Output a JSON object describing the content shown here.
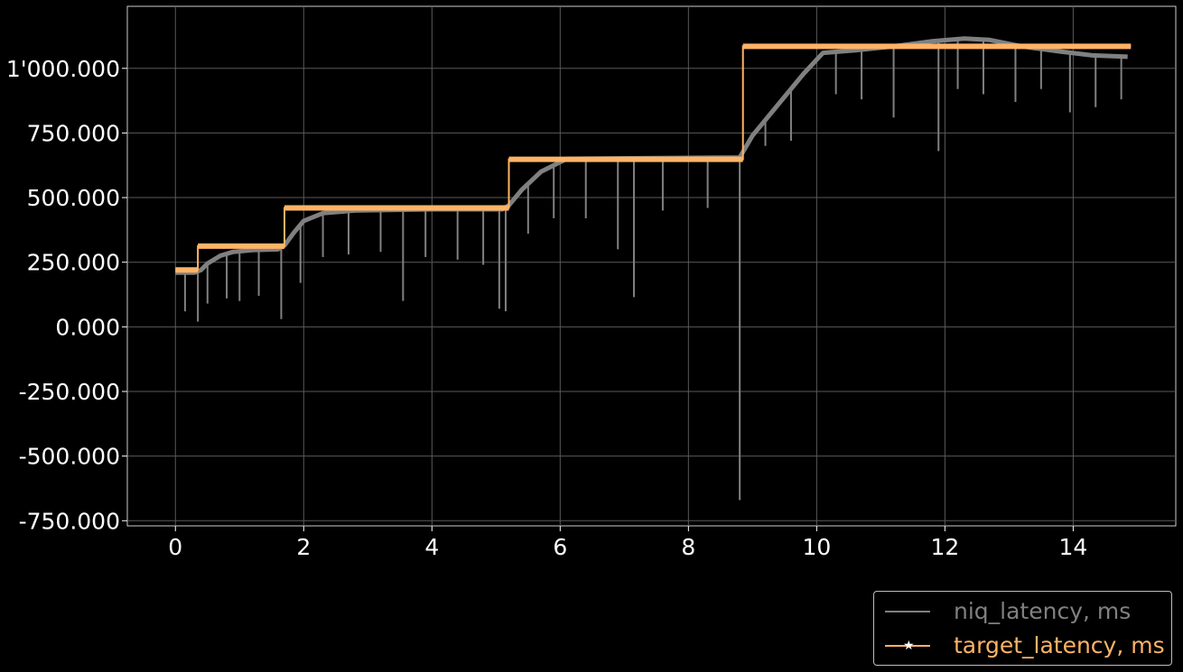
{
  "chart_data": {
    "type": "line",
    "title": "",
    "xlabel": "",
    "ylabel": "",
    "xlim": [
      -0.75,
      15.6
    ],
    "ylim": [
      -770,
      1240
    ],
    "x_ticks": [
      0,
      2,
      4,
      6,
      8,
      10,
      12,
      14
    ],
    "x_tick_labels": [
      "0",
      "2",
      "4",
      "6",
      "8",
      "10",
      "12",
      "14"
    ],
    "y_ticks": [
      -750,
      -500,
      -250,
      0,
      250,
      500,
      750,
      1000
    ],
    "y_tick_labels": [
      "-750.000",
      "-500.000",
      "-250.000",
      "0.000",
      "250.000",
      "500.000",
      "750.000",
      "1'000.000"
    ],
    "grid": true,
    "legend_position": "bottom-right, outside plot",
    "series": [
      {
        "name": "niq_latency, ms",
        "color": "#808080",
        "marker": "none",
        "x": [
          0,
          0.3,
          0.4,
          0.5,
          0.7,
          0.9,
          1.2,
          1.6,
          1.7,
          1.85,
          2.0,
          2.3,
          2.8,
          4.0,
          5.1,
          5.2,
          5.4,
          5.7,
          6.1,
          8.8,
          9.0,
          9.4,
          9.8,
          10.1,
          10.6,
          11.2,
          11.8,
          12.3,
          12.7,
          13.2,
          13.8,
          14.3,
          14.85
        ],
        "y": [
          210,
          210,
          220,
          245,
          275,
          290,
          297,
          300,
          315,
          365,
          410,
          440,
          450,
          455,
          455,
          470,
          530,
          600,
          650,
          655,
          740,
          860,
          980,
          1060,
          1070,
          1085,
          1105,
          1115,
          1110,
          1085,
          1065,
          1050,
          1045
        ],
        "dips": [
          {
            "x": 0.15,
            "y": 60
          },
          {
            "x": 0.35,
            "y": 20
          },
          {
            "x": 0.5,
            "y": 90
          },
          {
            "x": 0.8,
            "y": 110
          },
          {
            "x": 1.0,
            "y": 100
          },
          {
            "x": 1.3,
            "y": 120
          },
          {
            "x": 1.65,
            "y": 30
          },
          {
            "x": 1.95,
            "y": 170
          },
          {
            "x": 2.3,
            "y": 270
          },
          {
            "x": 2.7,
            "y": 280
          },
          {
            "x": 3.2,
            "y": 290
          },
          {
            "x": 3.55,
            "y": 100
          },
          {
            "x": 3.9,
            "y": 270
          },
          {
            "x": 4.4,
            "y": 260
          },
          {
            "x": 4.8,
            "y": 240
          },
          {
            "x": 5.05,
            "y": 70
          },
          {
            "x": 5.15,
            "y": 60
          },
          {
            "x": 5.5,
            "y": 360
          },
          {
            "x": 5.9,
            "y": 420
          },
          {
            "x": 6.4,
            "y": 420
          },
          {
            "x": 6.9,
            "y": 300
          },
          {
            "x": 7.15,
            "y": 115
          },
          {
            "x": 7.6,
            "y": 450
          },
          {
            "x": 8.3,
            "y": 460
          },
          {
            "x": 8.8,
            "y": -670
          },
          {
            "x": 9.2,
            "y": 700
          },
          {
            "x": 9.6,
            "y": 720
          },
          {
            "x": 10.3,
            "y": 900
          },
          {
            "x": 10.7,
            "y": 880
          },
          {
            "x": 11.2,
            "y": 810
          },
          {
            "x": 11.9,
            "y": 680
          },
          {
            "x": 12.2,
            "y": 920
          },
          {
            "x": 12.6,
            "y": 900
          },
          {
            "x": 13.1,
            "y": 870
          },
          {
            "x": 13.5,
            "y": 920
          },
          {
            "x": 13.95,
            "y": 830
          },
          {
            "x": 14.35,
            "y": 850
          },
          {
            "x": 14.75,
            "y": 880
          }
        ]
      },
      {
        "name": "target_latency, ms",
        "color": "#ffb366",
        "marker": "star",
        "x": [
          0,
          0.35,
          0.35,
          1.7,
          1.7,
          5.2,
          5.2,
          8.85,
          8.85,
          14.9
        ],
        "y": [
          220,
          220,
          312,
          312,
          460,
          460,
          648,
          648,
          1085,
          1085
        ]
      }
    ]
  }
}
